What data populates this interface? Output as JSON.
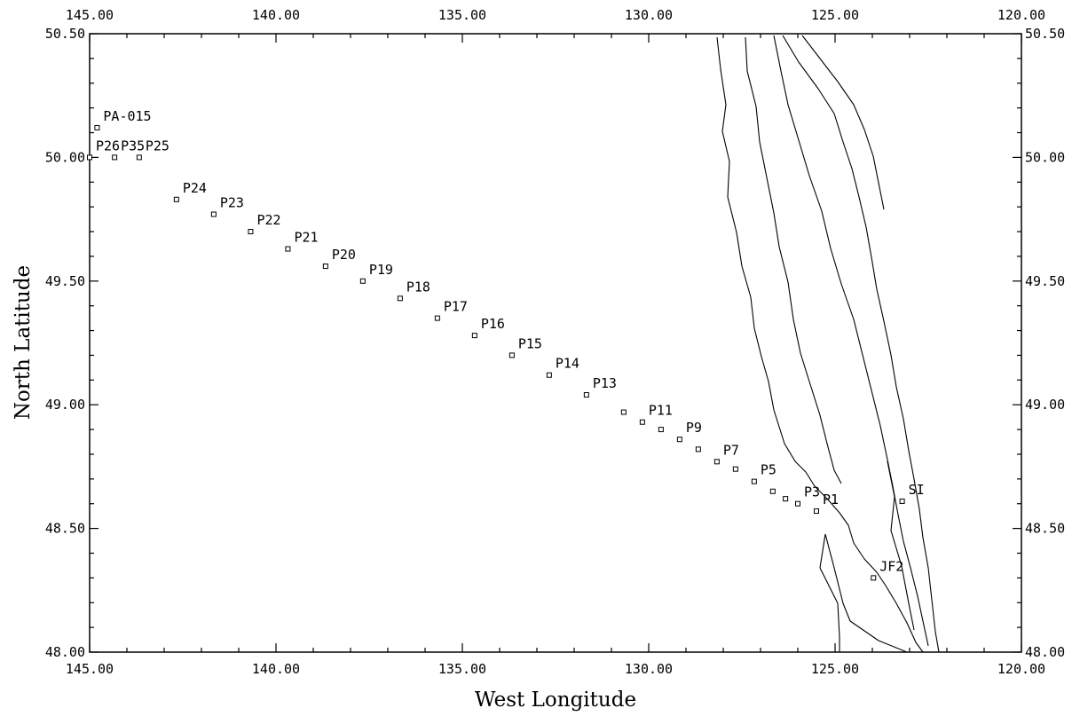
{
  "chart_data": {
    "type": "scatter",
    "xlabel": "West Longitude",
    "ylabel": "North Latitude",
    "xlim": [
      145.0,
      120.0
    ],
    "ylim": [
      48.0,
      50.5
    ],
    "x_ticks": [
      "145.00",
      "140.00",
      "135.00",
      "130.00",
      "125.00",
      "120.00"
    ],
    "y_ticks": [
      "48.00",
      "48.50",
      "49.00",
      "49.50",
      "50.00",
      "50.50"
    ],
    "grid": false,
    "stations": [
      {
        "label": "PA-015",
        "lon": 144.8,
        "lat": 50.12
      },
      {
        "label": "P26",
        "lon": 145.0,
        "lat": 50.0
      },
      {
        "label": "P35",
        "lon": 144.33,
        "lat": 50.0
      },
      {
        "label": "P25",
        "lon": 143.67,
        "lat": 50.0
      },
      {
        "label": "P24",
        "lon": 142.67,
        "lat": 49.83
      },
      {
        "label": "P23",
        "lon": 141.67,
        "lat": 49.77
      },
      {
        "label": "P22",
        "lon": 140.68,
        "lat": 49.7
      },
      {
        "label": "P21",
        "lon": 139.68,
        "lat": 49.63
      },
      {
        "label": "P20",
        "lon": 138.67,
        "lat": 49.56
      },
      {
        "label": "P19",
        "lon": 137.67,
        "lat": 49.5
      },
      {
        "label": "P18",
        "lon": 136.67,
        "lat": 49.43
      },
      {
        "label": "P17",
        "lon": 135.67,
        "lat": 49.35
      },
      {
        "label": "P16",
        "lon": 134.67,
        "lat": 49.28
      },
      {
        "label": "P15",
        "lon": 133.67,
        "lat": 49.2
      },
      {
        "label": "P14",
        "lon": 132.67,
        "lat": 49.12
      },
      {
        "label": "P13",
        "lon": 131.67,
        "lat": 49.04
      },
      {
        "label": "",
        "lon": 130.67,
        "lat": 48.97
      },
      {
        "label": "P11",
        "lon": 130.17,
        "lat": 48.93
      },
      {
        "label": "",
        "lon": 129.67,
        "lat": 48.9
      },
      {
        "label": "P9",
        "lon": 129.17,
        "lat": 48.86
      },
      {
        "label": "",
        "lon": 128.67,
        "lat": 48.82
      },
      {
        "label": "P7",
        "lon": 128.17,
        "lat": 48.77
      },
      {
        "label": "",
        "lon": 127.67,
        "lat": 48.74
      },
      {
        "label": "P5",
        "lon": 127.17,
        "lat": 48.69
      },
      {
        "label": "",
        "lon": 126.67,
        "lat": 48.65
      },
      {
        "label": "",
        "lon": 126.33,
        "lat": 48.62
      },
      {
        "label": "P3",
        "lon": 126.0,
        "lat": 48.6
      },
      {
        "label": "P1",
        "lon": 125.5,
        "lat": 48.57
      },
      {
        "label": "SI",
        "lon": 123.2,
        "lat": 48.61
      },
      {
        "label": "JF2",
        "lon": 123.97,
        "lat": 48.3
      }
    ]
  }
}
